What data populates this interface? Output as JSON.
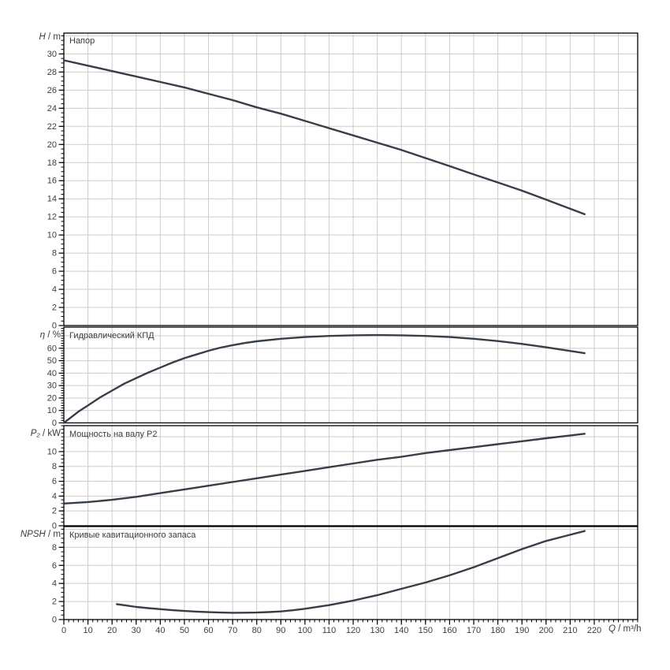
{
  "colors": {
    "curve": "#363e48",
    "grid": "#cccccc",
    "axis": "#000000",
    "text": "#3d3d3d",
    "background": "#ffffff"
  },
  "chart_data": {
    "type": "line",
    "x_axis": {
      "symbol": "Q",
      "unit": " / m³/h",
      "min": 0,
      "max": 238,
      "major_tick": 10,
      "minor_tick": 2,
      "tick_labels": [
        0,
        10,
        20,
        30,
        40,
        50,
        60,
        70,
        80,
        90,
        100,
        110,
        120,
        130,
        140,
        150,
        160,
        170,
        180,
        190,
        200,
        210,
        220
      ]
    },
    "panels": [
      {
        "id": "head",
        "title": "Напор",
        "symbol": "H",
        "unit": " / m",
        "y_min": 0,
        "y_max": 32.3,
        "y_label_step": 2,
        "y_minor_step": 0.5,
        "y_tick_labels": [
          0,
          2,
          4,
          6,
          8,
          10,
          12,
          14,
          16,
          18,
          20,
          22,
          24,
          26,
          28,
          30
        ],
        "series": [
          {
            "name": "H",
            "points": [
              [
                0,
                29.3
              ],
              [
                10,
                28.7
              ],
              [
                20,
                28.1
              ],
              [
                30,
                27.5
              ],
              [
                40,
                26.9
              ],
              [
                50,
                26.3
              ],
              [
                60,
                25.6
              ],
              [
                70,
                24.9
              ],
              [
                80,
                24.1
              ],
              [
                90,
                23.4
              ],
              [
                100,
                22.6
              ],
              [
                110,
                21.8
              ],
              [
                120,
                21.0
              ],
              [
                130,
                20.2
              ],
              [
                140,
                19.4
              ],
              [
                150,
                18.5
              ],
              [
                160,
                17.6
              ],
              [
                170,
                16.7
              ],
              [
                180,
                15.8
              ],
              [
                190,
                14.9
              ],
              [
                200,
                13.9
              ],
              [
                208,
                13.1
              ],
              [
                216,
                12.3
              ]
            ]
          }
        ]
      },
      {
        "id": "efficiency",
        "title": "Гидравлический КПД",
        "symbol": "η",
        "unit": " / %",
        "y_min": 0,
        "y_max": 77,
        "y_label_step": 10,
        "y_minor_step": 2,
        "y_tick_labels": [
          0,
          10,
          20,
          30,
          40,
          50,
          60
        ],
        "series": [
          {
            "name": "eta",
            "points": [
              [
                0,
                0
              ],
              [
                3,
                4.5
              ],
              [
                6,
                9
              ],
              [
                10,
                14
              ],
              [
                15,
                20.5
              ],
              [
                20,
                26
              ],
              [
                25,
                31.5
              ],
              [
                30,
                36
              ],
              [
                35,
                40.5
              ],
              [
                40,
                44.5
              ],
              [
                45,
                48.5
              ],
              [
                50,
                52
              ],
              [
                55,
                55
              ],
              [
                60,
                58
              ],
              [
                65,
                60.5
              ],
              [
                70,
                62.5
              ],
              [
                75,
                64.2
              ],
              [
                80,
                65.6
              ],
              [
                90,
                67.6
              ],
              [
                100,
                69
              ],
              [
                110,
                69.9
              ],
              [
                120,
                70.4
              ],
              [
                130,
                70.6
              ],
              [
                140,
                70.4
              ],
              [
                150,
                69.9
              ],
              [
                160,
                69
              ],
              [
                170,
                67.6
              ],
              [
                180,
                65.8
              ],
              [
                190,
                63.5
              ],
              [
                200,
                60.8
              ],
              [
                208,
                58.4
              ],
              [
                216,
                56
              ]
            ]
          }
        ]
      },
      {
        "id": "power",
        "title": "Мощность на валу P2",
        "symbol": "P₂",
        "unit": " / kW",
        "y_min": 0,
        "y_max": 13.5,
        "y_label_step": 2,
        "y_minor_step": 0.5,
        "y_tick_labels": [
          0,
          2,
          4,
          6,
          8,
          10
        ],
        "series": [
          {
            "name": "P2",
            "points": [
              [
                0,
                3.0
              ],
              [
                10,
                3.2
              ],
              [
                20,
                3.5
              ],
              [
                30,
                3.9
              ],
              [
                40,
                4.4
              ],
              [
                50,
                4.9
              ],
              [
                60,
                5.4
              ],
              [
                70,
                5.9
              ],
              [
                80,
                6.4
              ],
              [
                90,
                6.9
              ],
              [
                100,
                7.4
              ],
              [
                110,
                7.9
              ],
              [
                120,
                8.4
              ],
              [
                130,
                8.9
              ],
              [
                140,
                9.3
              ],
              [
                150,
                9.8
              ],
              [
                160,
                10.2
              ],
              [
                170,
                10.6
              ],
              [
                180,
                11.0
              ],
              [
                190,
                11.4
              ],
              [
                200,
                11.8
              ],
              [
                208,
                12.1
              ],
              [
                216,
                12.4
              ]
            ]
          }
        ]
      },
      {
        "id": "npsh",
        "title": "Кривые кавитационного запаса",
        "symbol": "NPSH",
        "unit": " / m",
        "y_min": 0,
        "y_max": 10.3,
        "y_label_step": 2,
        "y_minor_step": 0.5,
        "y_tick_labels": [
          0,
          2,
          4,
          6,
          8
        ],
        "series": [
          {
            "name": "NPSH",
            "points": [
              [
                22,
                1.7
              ],
              [
                26,
                1.55
              ],
              [
                30,
                1.4
              ],
              [
                35,
                1.27
              ],
              [
                40,
                1.15
              ],
              [
                45,
                1.04
              ],
              [
                50,
                0.95
              ],
              [
                55,
                0.88
              ],
              [
                60,
                0.82
              ],
              [
                65,
                0.78
              ],
              [
                70,
                0.75
              ],
              [
                75,
                0.76
              ],
              [
                80,
                0.78
              ],
              [
                85,
                0.83
              ],
              [
                90,
                0.9
              ],
              [
                95,
                1.03
              ],
              [
                100,
                1.2
              ],
              [
                110,
                1.6
              ],
              [
                120,
                2.1
              ],
              [
                130,
                2.7
              ],
              [
                140,
                3.4
              ],
              [
                150,
                4.1
              ],
              [
                160,
                4.9
              ],
              [
                170,
                5.8
              ],
              [
                180,
                6.8
              ],
              [
                190,
                7.8
              ],
              [
                200,
                8.7
              ],
              [
                208,
                9.25
              ],
              [
                216,
                9.8
              ]
            ]
          }
        ]
      }
    ]
  }
}
